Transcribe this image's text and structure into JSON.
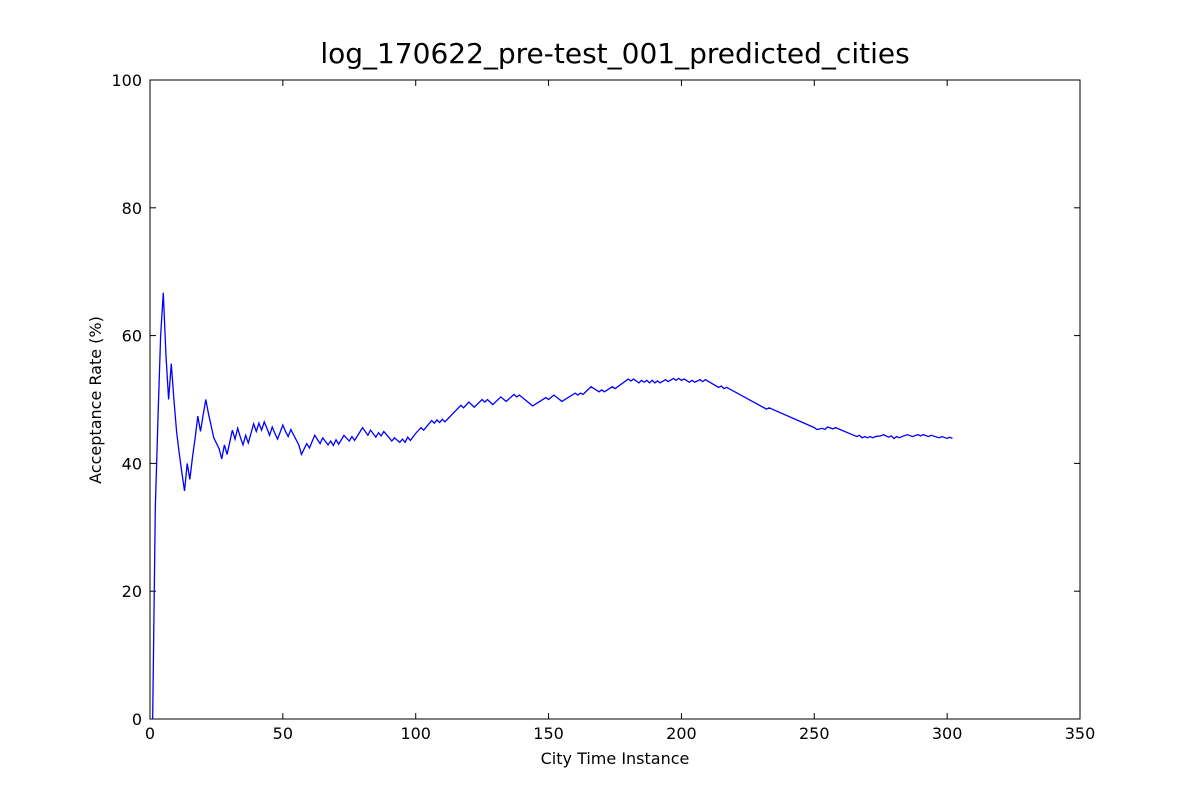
{
  "chart_data": {
    "type": "line",
    "title": "log_170622_pre-test_001_predicted_cities",
    "x_label": "City Time Instance",
    "y_label": "Acceptance Rate (%)",
    "color": "#0000ff",
    "xlim": [
      0,
      350
    ],
    "xticks": [
      0,
      50,
      100,
      150,
      200,
      250,
      300,
      350
    ],
    "ylim": [
      0,
      100
    ],
    "yticks": [
      0,
      20,
      40,
      60,
      80,
      100
    ],
    "grid": false,
    "x": [
      1,
      2,
      3,
      4,
      5,
      6,
      7,
      8,
      9,
      10,
      11,
      12,
      13,
      14,
      15,
      16,
      17,
      18,
      19,
      20,
      21,
      22,
      24,
      26,
      27,
      28,
      29,
      30,
      31,
      32,
      33,
      34,
      35,
      36,
      37,
      38,
      39,
      40,
      41,
      42,
      43,
      44,
      45,
      46,
      47,
      48,
      49,
      50,
      51,
      52,
      53,
      56,
      57,
      59,
      60,
      62,
      64,
      65,
      67,
      68,
      69,
      70,
      71,
      73,
      75,
      76,
      77,
      80,
      82,
      83,
      85,
      86,
      87,
      88,
      90,
      91,
      92,
      94,
      95,
      96,
      97,
      98,
      100,
      102,
      103,
      106,
      107,
      108,
      109,
      110,
      111,
      117,
      118,
      120,
      122,
      125,
      126,
      127,
      129,
      132,
      134,
      137,
      138,
      139,
      144,
      149,
      150,
      152,
      155,
      160,
      161,
      162,
      163,
      166,
      169,
      170,
      171,
      174,
      175,
      180,
      181,
      182,
      184,
      185,
      186,
      187,
      188,
      189,
      190,
      191,
      192,
      194,
      195,
      197,
      198,
      199,
      200,
      201,
      203,
      204,
      205,
      207,
      208,
      209,
      214,
      215,
      216,
      217,
      232,
      233,
      250,
      251,
      253,
      254,
      255,
      257,
      258,
      266,
      267,
      268,
      269,
      270,
      271,
      272,
      273,
      275,
      276,
      278,
      279,
      280,
      281,
      282,
      283,
      285,
      287,
      289,
      290,
      291,
      293,
      294,
      297,
      298,
      300,
      301,
      302
    ],
    "values": [
      0,
      33,
      47,
      60,
      66.7,
      57,
      50,
      55.6,
      50,
      45,
      41.6,
      38.5,
      35.7,
      40,
      37.5,
      41,
      44,
      47.4,
      45,
      47.6,
      50,
      47.8,
      44,
      42.3,
      40.7,
      42.9,
      41.4,
      43.3,
      45.2,
      43.8,
      45.5,
      44.1,
      42.9,
      44.4,
      43.2,
      44.7,
      46.2,
      45,
      46.3,
      45.2,
      46.5,
      45.5,
      44.4,
      45.7,
      44.7,
      43.8,
      44.9,
      46,
      45,
      44.2,
      45.3,
      42.9,
      41.4,
      43.1,
      42.4,
      44.4,
      43.1,
      44,
      42.9,
      43.5,
      42.8,
      43.7,
      43,
      44.4,
      43.5,
      44.2,
      43.6,
      45.6,
      44.4,
      45.2,
      44.1,
      44.8,
      44.3,
      45,
      44,
      43.5,
      44,
      43.3,
      43.8,
      43.3,
      44.1,
      43.6,
      44.7,
      45.6,
      45.2,
      46.7,
      46.3,
      46.8,
      46.4,
      46.9,
      46.5,
      49.1,
      48.7,
      49.6,
      48.8,
      50,
      49.6,
      50,
      49.2,
      50.4,
      49.7,
      50.8,
      50.4,
      50.7,
      49,
      50.3,
      50,
      50.7,
      49.7,
      51,
      50.7,
      51,
      50.8,
      52,
      51.2,
      51.5,
      51.2,
      52,
      51.7,
      53.2,
      52.9,
      53.2,
      52.6,
      53,
      52.7,
      53,
      52.6,
      53,
      52.6,
      52.9,
      52.6,
      53.1,
      52.8,
      53.3,
      53,
      53.3,
      53,
      53.2,
      52.7,
      53,
      52.7,
      53.1,
      52.8,
      53.1,
      51.9,
      52.1,
      51.7,
      51.9,
      48.5,
      48.7,
      45.6,
      45.3,
      45.5,
      45.3,
      45.7,
      45.4,
      45.6,
      44.2,
      44.4,
      44,
      44.2,
      44,
      44.2,
      44,
      44.2,
      44.3,
      44.5,
      44.1,
      44.3,
      43.9,
      44.2,
      44,
      44.2,
      44.5,
      44.2,
      44.5,
      44.3,
      44.5,
      44.2,
      44.4,
      44,
      44.2,
      43.9,
      44.1,
      43.9
    ]
  }
}
